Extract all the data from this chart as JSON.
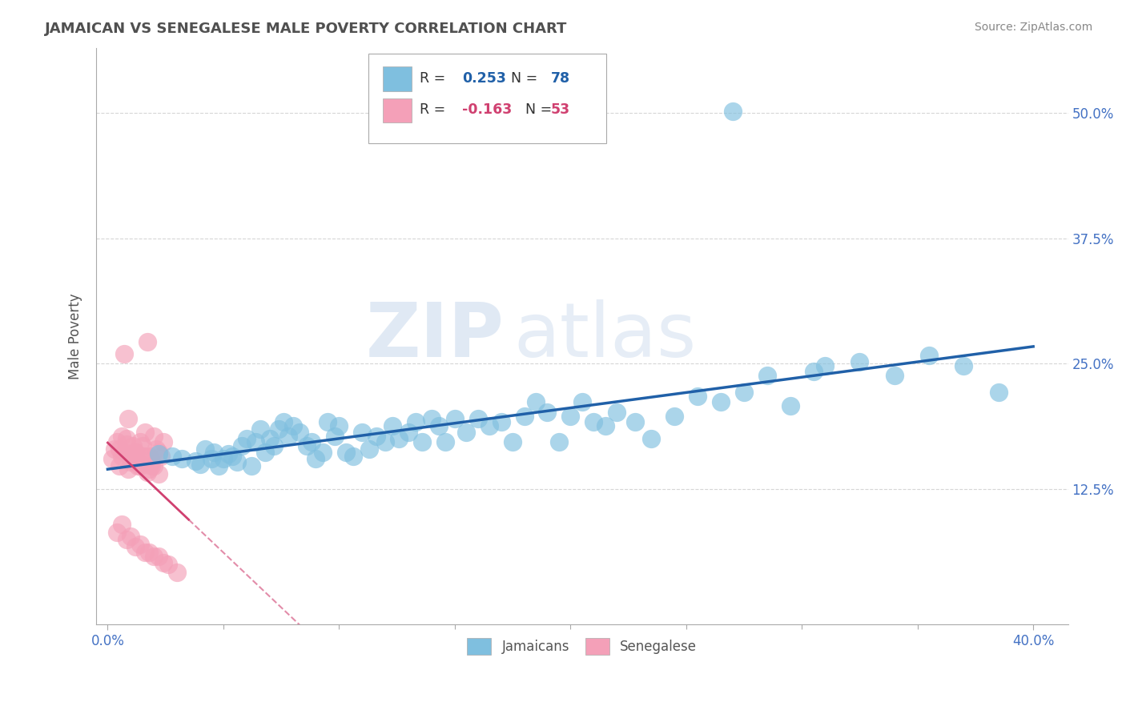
{
  "title": "JAMAICAN VS SENEGALESE MALE POVERTY CORRELATION CHART",
  "source": "Source: ZipAtlas.com",
  "ylabel": "Male Poverty",
  "xlim": [
    -0.005,
    0.415
  ],
  "ylim": [
    -0.01,
    0.565
  ],
  "xticks": [
    0.0,
    0.4
  ],
  "xtick_labels": [
    "0.0%",
    "40.0%"
  ],
  "yticks": [
    0.125,
    0.25,
    0.375,
    0.5
  ],
  "ytick_labels": [
    "12.5%",
    "25.0%",
    "37.5%",
    "50.0%"
  ],
  "jamaican_R": 0.253,
  "jamaican_N": 78,
  "senegalese_R": -0.163,
  "senegalese_N": 53,
  "jamaican_color": "#7fbfdf",
  "senegalese_color": "#f4a0b8",
  "jamaican_line_color": "#2060a8",
  "senegalese_line_color": "#d04070",
  "background_color": "#ffffff",
  "grid_color": "#cccccc",
  "title_color": "#505050",
  "watermark_zip": "ZIP",
  "watermark_atlas": "atlas",
  "jamaican_x": [
    0.022,
    0.028,
    0.032,
    0.038,
    0.04,
    0.042,
    0.045,
    0.046,
    0.048,
    0.05,
    0.052,
    0.054,
    0.056,
    0.058,
    0.06,
    0.062,
    0.064,
    0.066,
    0.068,
    0.07,
    0.072,
    0.074,
    0.076,
    0.078,
    0.08,
    0.083,
    0.086,
    0.088,
    0.09,
    0.093,
    0.095,
    0.098,
    0.1,
    0.103,
    0.106,
    0.11,
    0.113,
    0.116,
    0.12,
    0.123,
    0.126,
    0.13,
    0.133,
    0.136,
    0.14,
    0.143,
    0.146,
    0.15,
    0.155,
    0.16,
    0.165,
    0.17,
    0.175,
    0.18,
    0.185,
    0.19,
    0.195,
    0.2,
    0.205,
    0.21,
    0.215,
    0.22,
    0.228,
    0.235,
    0.245,
    0.255,
    0.265,
    0.275,
    0.285,
    0.295,
    0.31,
    0.325,
    0.34,
    0.355,
    0.37,
    0.385,
    0.27,
    0.305
  ],
  "jamaican_y": [
    0.16,
    0.158,
    0.155,
    0.153,
    0.15,
    0.165,
    0.155,
    0.162,
    0.148,
    0.155,
    0.16,
    0.158,
    0.152,
    0.168,
    0.175,
    0.148,
    0.172,
    0.185,
    0.162,
    0.175,
    0.168,
    0.185,
    0.192,
    0.178,
    0.188,
    0.182,
    0.168,
    0.172,
    0.155,
    0.162,
    0.192,
    0.178,
    0.188,
    0.162,
    0.158,
    0.182,
    0.165,
    0.178,
    0.172,
    0.188,
    0.175,
    0.182,
    0.192,
    0.172,
    0.195,
    0.188,
    0.172,
    0.195,
    0.182,
    0.195,
    0.188,
    0.192,
    0.172,
    0.198,
    0.212,
    0.202,
    0.172,
    0.198,
    0.212,
    0.192,
    0.188,
    0.202,
    0.192,
    0.175,
    0.198,
    0.218,
    0.212,
    0.222,
    0.238,
    0.208,
    0.248,
    0.252,
    0.238,
    0.258,
    0.248,
    0.222,
    0.502,
    0.242
  ],
  "senegalese_x": [
    0.002,
    0.004,
    0.005,
    0.006,
    0.007,
    0.008,
    0.009,
    0.01,
    0.011,
    0.012,
    0.013,
    0.014,
    0.015,
    0.016,
    0.017,
    0.018,
    0.019,
    0.02,
    0.021,
    0.022,
    0.023,
    0.024,
    0.005,
    0.007,
    0.009,
    0.011,
    0.013,
    0.015,
    0.017,
    0.019,
    0.003,
    0.006,
    0.01,
    0.014,
    0.018,
    0.022,
    0.008,
    0.012,
    0.016,
    0.02,
    0.004,
    0.008,
    0.012,
    0.016,
    0.02,
    0.024,
    0.006,
    0.01,
    0.014,
    0.018,
    0.022,
    0.026,
    0.03
  ],
  "senegalese_y": [
    0.155,
    0.172,
    0.165,
    0.178,
    0.26,
    0.175,
    0.195,
    0.158,
    0.168,
    0.162,
    0.152,
    0.172,
    0.168,
    0.182,
    0.272,
    0.158,
    0.148,
    0.178,
    0.165,
    0.162,
    0.158,
    0.172,
    0.148,
    0.162,
    0.145,
    0.155,
    0.148,
    0.158,
    0.142,
    0.152,
    0.165,
    0.158,
    0.152,
    0.148,
    0.145,
    0.14,
    0.17,
    0.162,
    0.158,
    0.148,
    0.082,
    0.075,
    0.068,
    0.062,
    0.058,
    0.052,
    0.09,
    0.078,
    0.07,
    0.062,
    0.058,
    0.05,
    0.042
  ]
}
